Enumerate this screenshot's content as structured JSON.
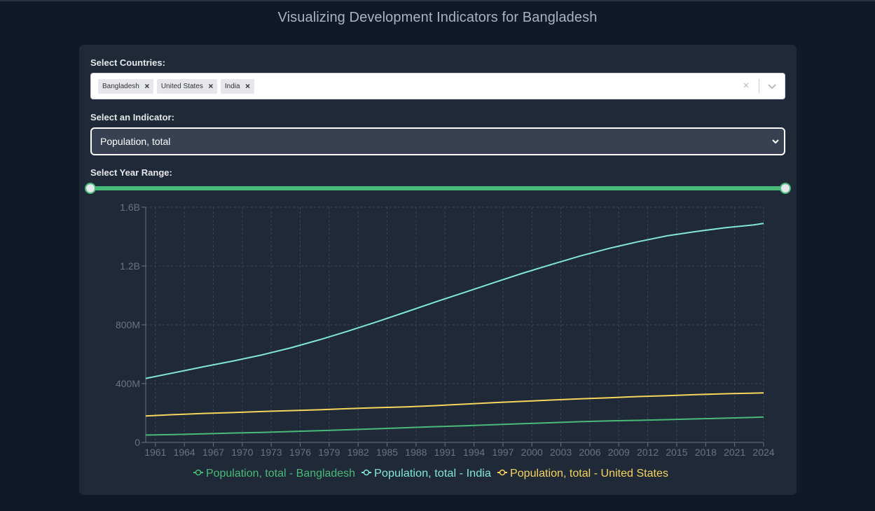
{
  "page": {
    "title": "Visualizing Development Indicators for Bangladesh"
  },
  "countries": {
    "label": "Select Countries:",
    "selected": [
      "Bangladesh",
      "United States",
      "India"
    ],
    "remove_glyph": "×",
    "clear_glyph": "×"
  },
  "indicator": {
    "label": "Select an Indicator:",
    "value": "Population, total"
  },
  "year_range": {
    "label": "Select Year Range:",
    "min_year": 1960,
    "max_year": 2024,
    "start_year": 1960,
    "end_year": 2024
  },
  "colors": {
    "bangladesh": "#48bb78",
    "india": "#81e6d9",
    "united_states": "#f6d55c",
    "grid": "#3b4656",
    "axis": "#6b7280",
    "tick_text": "#6b7280"
  },
  "chart_data": {
    "type": "line",
    "title": "",
    "xlabel": "",
    "ylabel": "",
    "x": [
      1960,
      1963,
      1966,
      1969,
      1972,
      1975,
      1978,
      1981,
      1984,
      1987,
      1990,
      1993,
      1996,
      1999,
      2002,
      2005,
      2008,
      2011,
      2014,
      2017,
      2020,
      2023,
      2024
    ],
    "xlim": [
      1960,
      2024
    ],
    "x_ticks": [
      1961,
      1964,
      1967,
      1970,
      1973,
      1976,
      1979,
      1982,
      1985,
      1988,
      1991,
      1994,
      1997,
      2000,
      2003,
      2006,
      2009,
      2012,
      2015,
      2018,
      2021,
      2024
    ],
    "x_tick_labels": [
      "1961",
      "1964",
      "1967",
      "1970",
      "1973",
      "1976",
      "1979",
      "1982",
      "1985",
      "1988",
      "1991",
      "1994",
      "1997",
      "2000",
      "2003",
      "2006",
      "2009",
      "2012",
      "2015",
      "2018",
      "2021",
      "2024"
    ],
    "ylim": [
      0,
      1600000000
    ],
    "y_ticks": [
      0,
      400000000,
      800000000,
      1200000000,
      1600000000
    ],
    "y_tick_labels": [
      "0",
      "400M",
      "800M",
      "1.2B",
      "1.6B"
    ],
    "grid": true,
    "legend": "bottom-center",
    "series": [
      {
        "name": "Population, total - Bangladesh",
        "color_key": "bangladesh",
        "values": [
          50000000,
          54000000,
          58000000,
          64000000,
          68000000,
          74000000,
          80000000,
          86000000,
          93000000,
          100000000,
          107000000,
          113000000,
          120000000,
          127000000,
          134000000,
          141000000,
          146000000,
          150000000,
          155000000,
          160000000,
          165000000,
          170000000,
          173000000
        ]
      },
      {
        "name": "Population, total - India",
        "color_key": "india",
        "values": [
          435000000,
          475000000,
          515000000,
          553000000,
          595000000,
          643000000,
          698000000,
          758000000,
          822000000,
          888000000,
          955000000,
          1020000000,
          1085000000,
          1150000000,
          1210000000,
          1268000000,
          1320000000,
          1365000000,
          1405000000,
          1435000000,
          1460000000,
          1480000000,
          1490000000
        ]
      },
      {
        "name": "Population, total - United States",
        "color_key": "united_states",
        "values": [
          180000000,
          189000000,
          197000000,
          203000000,
          210000000,
          216000000,
          222000000,
          230000000,
          236000000,
          242000000,
          250000000,
          260000000,
          270000000,
          279000000,
          288000000,
          296000000,
          304000000,
          312000000,
          318000000,
          325000000,
          331000000,
          335000000,
          337000000
        ]
      }
    ]
  }
}
